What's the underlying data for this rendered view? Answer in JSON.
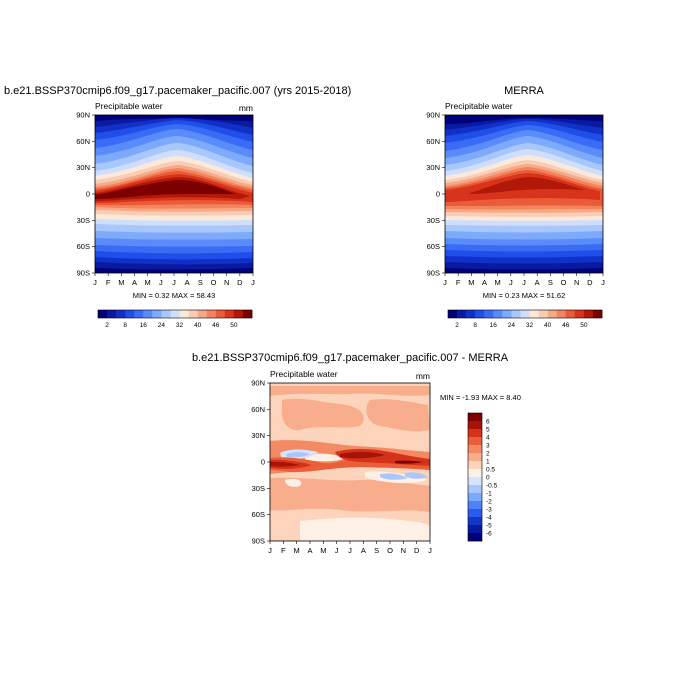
{
  "chart_data": [
    {
      "type": "heatmap",
      "title": "b.e21.BSSP370cmip6.f09_g17.pacemaker_pacific.007 (yrs 2015-2018)",
      "subtitle_left": "Precipitable water",
      "units": "mm",
      "x_ticks": [
        "J",
        "F",
        "M",
        "A",
        "M",
        "J",
        "J",
        "A",
        "S",
        "O",
        "N",
        "D",
        "J"
      ],
      "y_ticks": [
        "90N",
        "60N",
        "30N",
        "0",
        "30S",
        "60S",
        "90S"
      ],
      "stats": "MIN =   0.32 MAX =  58.43",
      "min": 0.32,
      "max": 58.43,
      "colorbar_labels": [
        "2",
        "8",
        "16",
        "24",
        "32",
        "40",
        "46",
        "50"
      ],
      "colorbar_orientation": "horizontal"
    },
    {
      "type": "heatmap",
      "title": "MERRA",
      "subtitle_left": "Precipitable water",
      "units": "",
      "x_ticks": [
        "J",
        "F",
        "M",
        "A",
        "M",
        "J",
        "J",
        "A",
        "S",
        "O",
        "N",
        "D",
        "J"
      ],
      "y_ticks": [
        "90N",
        "60N",
        "30N",
        "0",
        "30S",
        "60S",
        "90S"
      ],
      "stats": "MIN =   0.23 MAX =  51.62",
      "min": 0.23,
      "max": 51.62,
      "colorbar_labels": [
        "2",
        "8",
        "16",
        "24",
        "32",
        "40",
        "46",
        "50"
      ],
      "colorbar_orientation": "horizontal"
    },
    {
      "type": "heatmap",
      "title": "b.e21.BSSP370cmip6.f09_g17.pacemaker_pacific.007 - MERRA",
      "subtitle_left": "Precipitable water",
      "units": "mm",
      "x_ticks": [
        "J",
        "F",
        "M",
        "A",
        "M",
        "J",
        "J",
        "A",
        "S",
        "O",
        "N",
        "D",
        "J"
      ],
      "y_ticks": [
        "90N",
        "60N",
        "30N",
        "0",
        "30S",
        "60S",
        "90S"
      ],
      "stats": "MIN =  -1.93 MAX =   8.40",
      "min": -1.93,
      "max": 8.4,
      "colorbar_labels": [
        "6",
        "5",
        "4",
        "3",
        "2",
        "1",
        "0.5",
        "0",
        "-0.5",
        "-1",
        "-2",
        "-3",
        "-4",
        "-5",
        "-6"
      ],
      "colorbar_orientation": "vertical"
    }
  ],
  "colors": {
    "abs_scale": [
      "#00007a",
      "#0a1aa0",
      "#1030c8",
      "#1f4ee8",
      "#3a6bf5",
      "#5a8bfa",
      "#7eaafc",
      "#a8c8fd",
      "#cfdffb",
      "#fbe9dc",
      "#f9cdb4",
      "#f6a986",
      "#f2845e",
      "#ec5b38",
      "#d8331c",
      "#b01808",
      "#7d0000"
    ],
    "diff_scale": [
      "#00007a",
      "#0a1aa0",
      "#1236c8",
      "#2a5aee",
      "#4d82f8",
      "#7ea8fc",
      "#aac7fd",
      "#d6e4fb",
      "#fff0e6",
      "#fcd3bb",
      "#f8ae8d",
      "#f28a63",
      "#ea5f39",
      "#d5321a",
      "#a71306",
      "#7d0000"
    ]
  }
}
